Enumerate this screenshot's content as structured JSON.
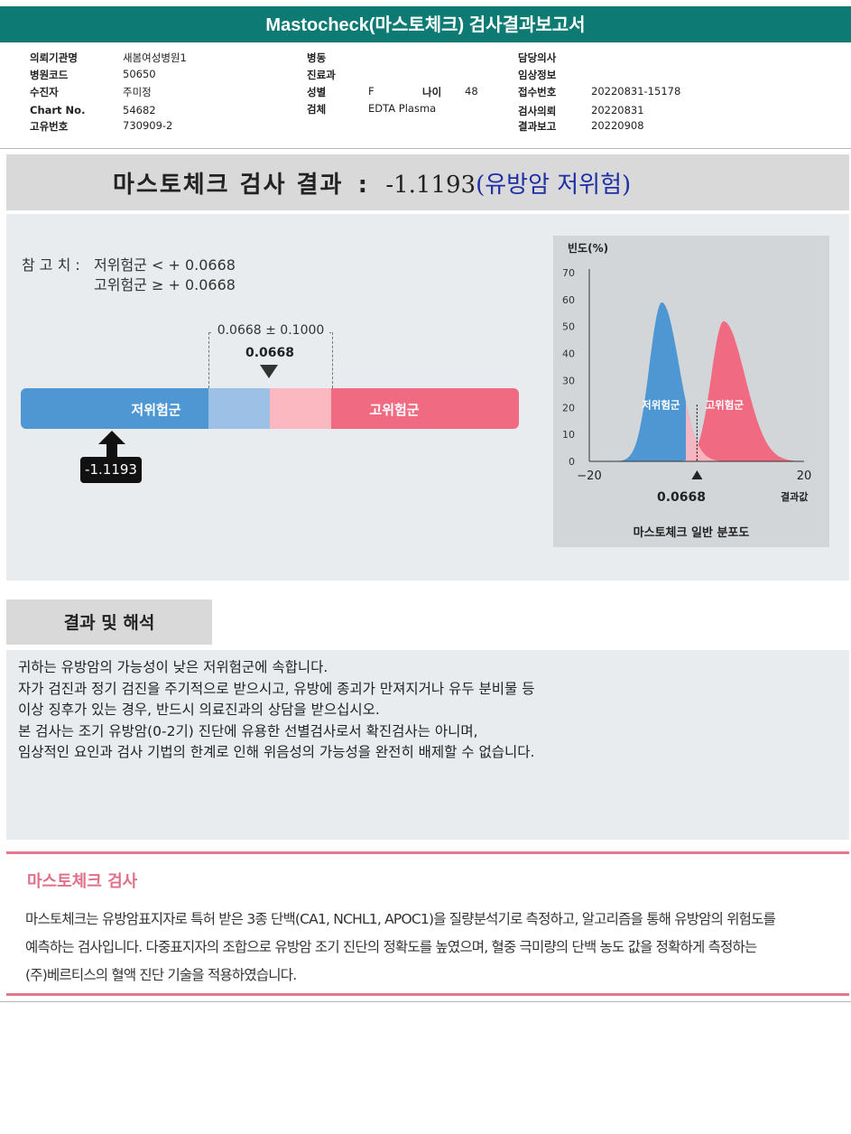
{
  "header": {
    "title": "Mastocheck(마스토체크) 검사결과보고서"
  },
  "info": {
    "institution_label": "의뢰기관명",
    "institution": "새봄여성병원1",
    "hospital_code_label": "병원코드",
    "hospital_code": "50650",
    "patient_label": "수진자",
    "patient": "주미정",
    "chart_label": "Chart No.",
    "chart": "54682",
    "unique_label": "고유번호",
    "unique": "730909-2",
    "ward_label": "병동",
    "dept_label": "진료과",
    "sex_label": "성별",
    "sex": "F",
    "age_label": "나이",
    "age": "48",
    "specimen_label": "검체",
    "specimen": "EDTA Plasma",
    "doctor_label": "담당의사",
    "clinical_label": "임상정보",
    "receipt_label": "접수번호",
    "receipt": "20220831-15178",
    "request_label": "검사의뢰",
    "request": "20220831",
    "report_label": "결과보고",
    "report": "20220908"
  },
  "result": {
    "label": "마스토체크 검사 결과",
    "sep": ":",
    "value": "-1.1193",
    "risk": "(유방암 저위험)"
  },
  "reference": {
    "prefix": "참 고 치 :",
    "low": "저위험군 < + 0.0668",
    "high": "고위험군 ≥ + 0.0668",
    "range": "0.0668 ± 0.1000",
    "cutoff": "0.0668",
    "low_group": "저위험군",
    "high_group": "고위험군",
    "patient_value": "-1.1193"
  },
  "colors": {
    "low": "#4f97d2",
    "low_light": "#9dc1e6",
    "high_light": "#fbb8c1",
    "high": "#f06b82"
  },
  "chart_data": {
    "type": "area",
    "ylabel": "빈도(%)",
    "xlabel": "결과값",
    "title": "마스토체크 일반 분포도",
    "xlim": [
      -20,
      20
    ],
    "ylim": [
      0,
      70
    ],
    "x_ticks": [
      "−20",
      "20"
    ],
    "y_ticks": [
      "70",
      "60",
      "50",
      "40",
      "30",
      "20",
      "10",
      "0"
    ],
    "cutoff_label": "0.0668",
    "series": [
      {
        "name": "저위험군",
        "peak_x": -6.5,
        "peak_y": 59
      },
      {
        "name": "고위험군",
        "peak_x": 5,
        "peak_y": 52
      }
    ]
  },
  "interpretation": {
    "title": "결과 및 해석",
    "lines": [
      "귀하는 유방암의 가능성이 낮은 저위험군에 속합니다.",
      "자가 검진과 정기 검진을 주기적으로 받으시고, 유방에 종괴가 만져지거나 유두 분비물 등",
      "이상 징후가 있는 경우, 반드시 의료진과의 상담을 받으십시오.",
      "본 검사는 조기 유방암(0-2기) 진단에 유용한 선별검사로서 확진검사는 아니며,",
      "임상적인 요인과 검사 기법의 한계로 인해 위음성의 가능성을 완전히 배제할 수 없습니다."
    ]
  },
  "about": {
    "title": "마스토체크 검사",
    "lines": [
      "마스토체크는 유방암표지자로 특허 받은 3종 단백(CA1, NCHL1, APOC1)을 질량분석기로 측정하고, 알고리즘을 통해 유방암의 위험도를",
      "예측하는 검사입니다. 다중표지자의 조합으로 유방암 조기 진단의 정확도를 높였으며, 혈중 극미량의 단백 농도 값을 정확하게 측정하는",
      "(주)베르티스의 혈액 진단 기술을 적용하였습니다."
    ]
  }
}
